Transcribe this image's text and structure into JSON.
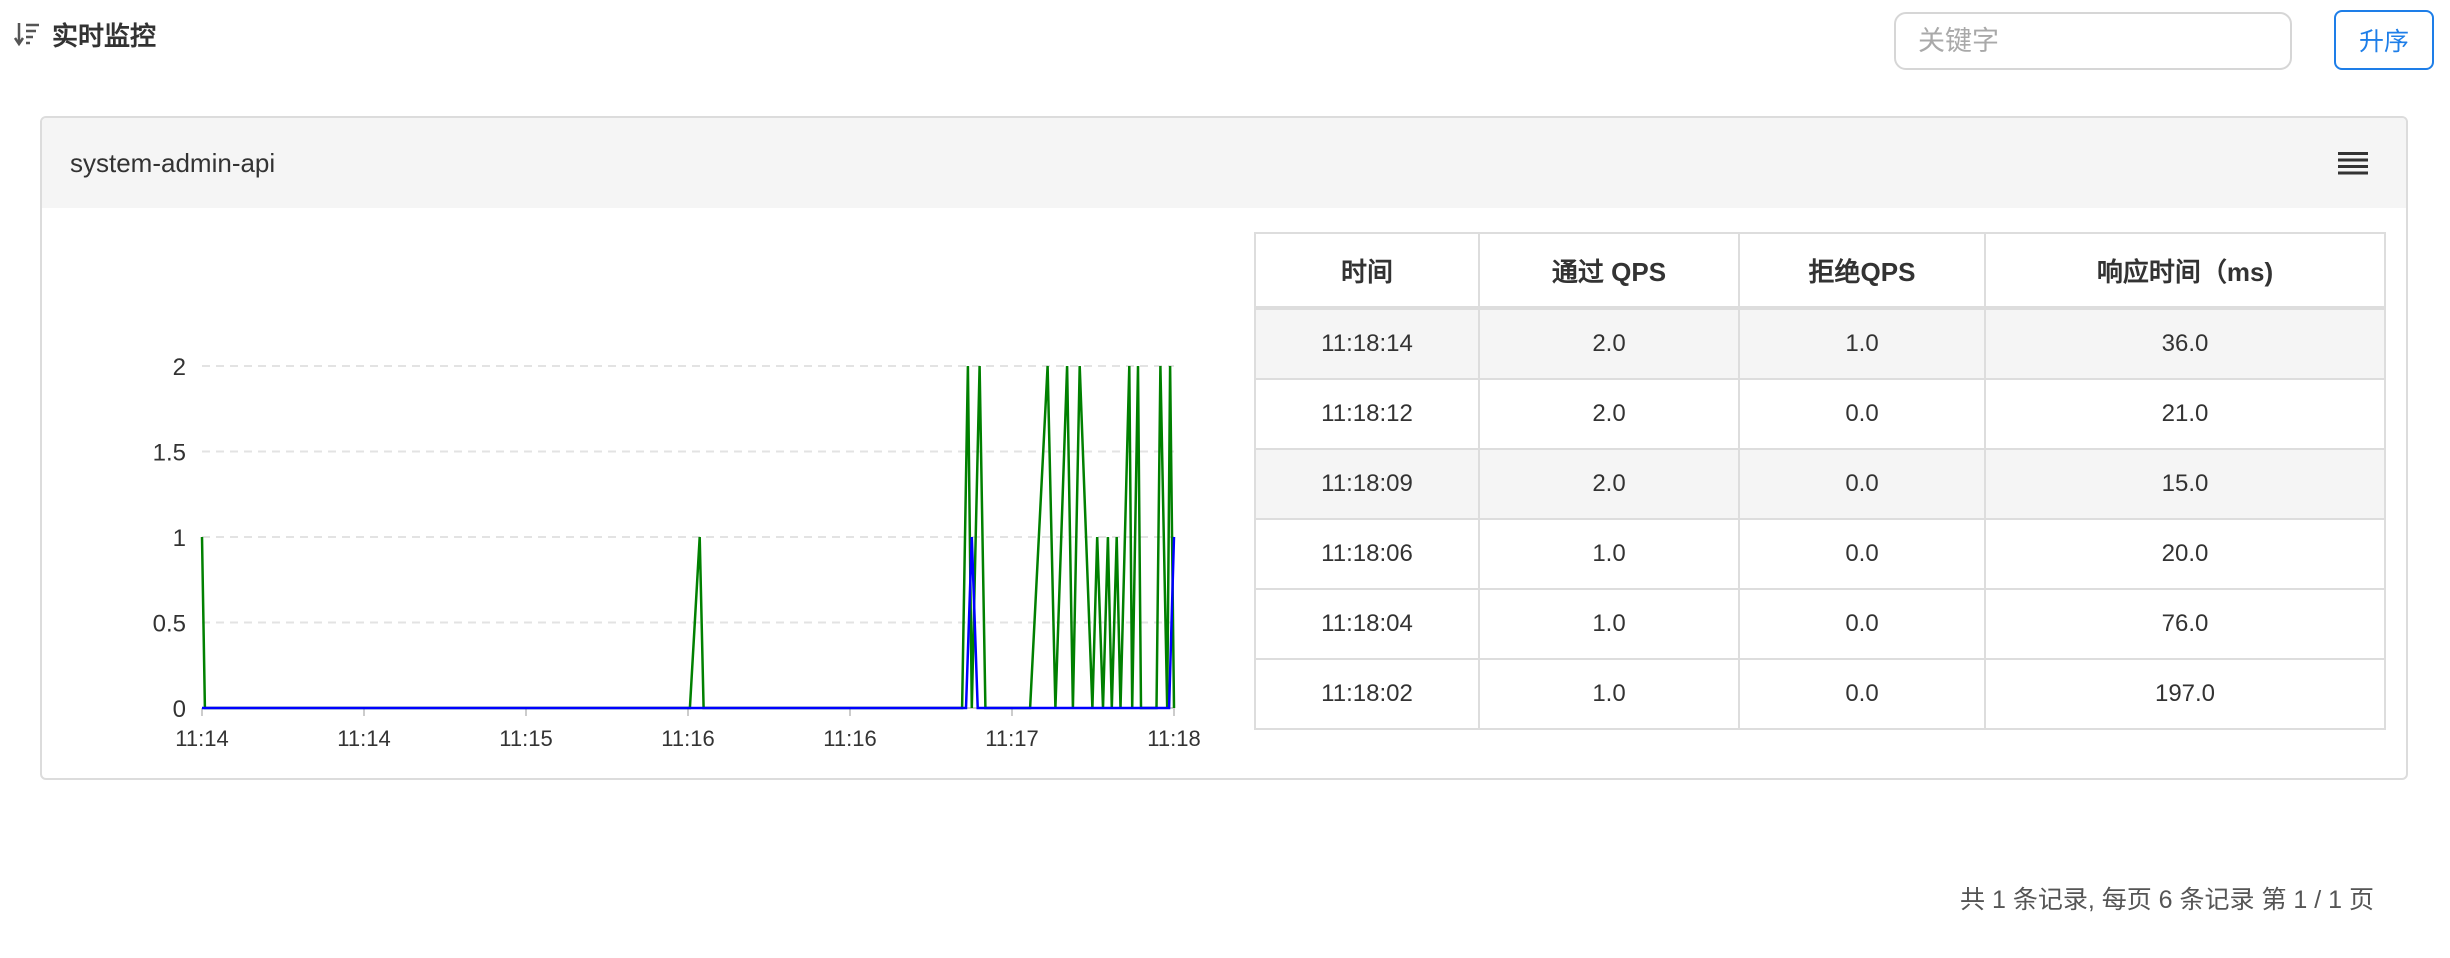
{
  "header": {
    "title": "实时监控",
    "icon": "sort-descending-icon"
  },
  "search": {
    "placeholder": "关键字",
    "value": ""
  },
  "sort_button": {
    "label": "升序"
  },
  "panel": {
    "title": "system-admin-api",
    "menu_icon": "list-icon"
  },
  "chart_data": {
    "type": "line",
    "x_ticks": [
      "11:14",
      "11:14",
      "11:15",
      "11:16",
      "11:16",
      "11:17",
      "11:18"
    ],
    "y_ticks": [
      "0",
      "0.5",
      "1",
      "1.5",
      "2"
    ],
    "ylim": [
      0,
      2
    ],
    "grid": true,
    "legend_position": "bottom",
    "colors": {
      "pass": "#008000",
      "block": "#0000ff",
      "grid": "#e3e3e3",
      "axis": "#cccccc",
      "tick_text": "#333333"
    },
    "series": [
      {
        "name": "通过 QPS",
        "color": "#008000",
        "x": [
          0,
          0.003,
          0.502,
          0.512,
          0.516,
          0.782,
          0.788,
          0.792,
          0.8,
          0.806,
          0.812,
          0.852,
          0.87,
          0.878,
          0.89,
          0.896,
          0.903,
          0.916,
          0.921,
          0.927,
          0.932,
          0.936,
          0.941,
          0.945,
          0.954,
          0.957,
          0.963,
          0.966,
          0.982,
          0.986,
          0.993,
          0.996,
          1.0
        ],
        "y": [
          1,
          0,
          0,
          1,
          0,
          0,
          2,
          0,
          2,
          0,
          0,
          0,
          2,
          0,
          2,
          0,
          2,
          0,
          1,
          0,
          1,
          0,
          1,
          0,
          2,
          0,
          2,
          0,
          0,
          2,
          0,
          2,
          0
        ]
      },
      {
        "name": "拒绝 QPS",
        "color": "#0000ff",
        "x": [
          0,
          0.786,
          0.792,
          0.798,
          0.995,
          1.0
        ],
        "y": [
          0,
          0,
          1,
          0,
          0,
          1
        ]
      }
    ]
  },
  "table": {
    "columns": [
      "时间",
      "通过 QPS",
      "拒绝QPS",
      "响应时间（ms)"
    ],
    "rows": [
      [
        "11:18:14",
        "2.0",
        "1.0",
        "36.0"
      ],
      [
        "11:18:12",
        "2.0",
        "0.0",
        "21.0"
      ],
      [
        "11:18:09",
        "2.0",
        "0.0",
        "15.0"
      ],
      [
        "11:18:06",
        "1.0",
        "0.0",
        "20.0"
      ],
      [
        "11:18:04",
        "1.0",
        "0.0",
        "76.0"
      ],
      [
        "11:18:02",
        "1.0",
        "0.0",
        "197.0"
      ]
    ]
  },
  "pagination": {
    "info": "共 1 条记录, 每页 6 条记录 第 1 / 1 页"
  }
}
